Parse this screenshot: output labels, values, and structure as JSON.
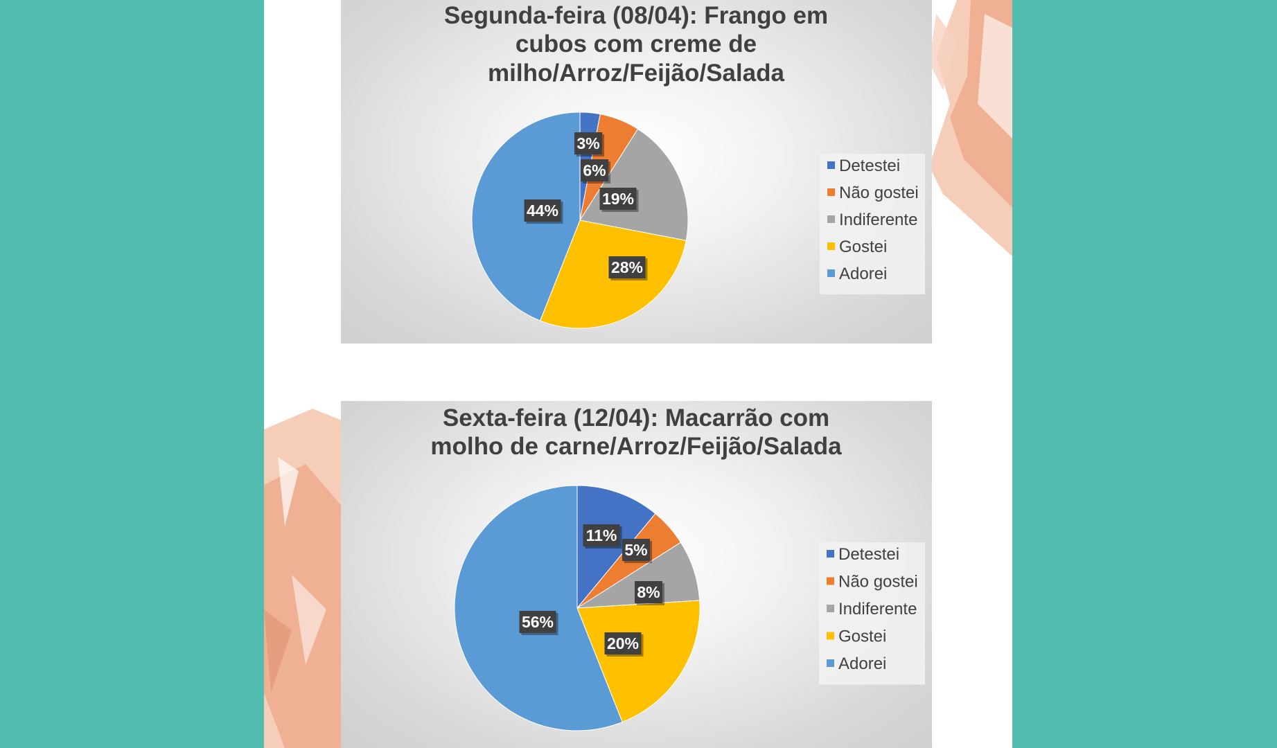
{
  "colors": {
    "background": "#52bdae",
    "slide": "#ffffff",
    "brush_accent": "#f0b49a",
    "label_box": "#404040"
  },
  "chart_data": [
    {
      "type": "pie",
      "title_lines": [
        "Segunda-feira (08/04): Frango em",
        "cubos com creme de",
        "milho/Arroz/Feijão/Salada"
      ],
      "categories": [
        "Detestei",
        "Não gostei",
        "Indiferente",
        "Gostei",
        "Adorei"
      ],
      "values": [
        3,
        6,
        19,
        28,
        44
      ],
      "labels": [
        "3%",
        "6%",
        "19%",
        "28%",
        "44%"
      ],
      "colors": [
        "#4472c4",
        "#ed7d31",
        "#a5a5a5",
        "#ffc000",
        "#5b9bd5"
      ],
      "legend_position": "right"
    },
    {
      "type": "pie",
      "title_lines": [
        "Sexta-feira (12/04): Macarrão com",
        "molho de carne/Arroz/Feijão/Salada"
      ],
      "categories": [
        "Detestei",
        "Não gostei",
        "Indiferente",
        "Gostei",
        "Adorei"
      ],
      "values": [
        11,
        5,
        8,
        20,
        56
      ],
      "labels": [
        "11%",
        "5%",
        "8%",
        "20%",
        "56%"
      ],
      "colors": [
        "#4472c4",
        "#ed7d31",
        "#a5a5a5",
        "#ffc000",
        "#5b9bd5"
      ],
      "legend_position": "right"
    }
  ]
}
